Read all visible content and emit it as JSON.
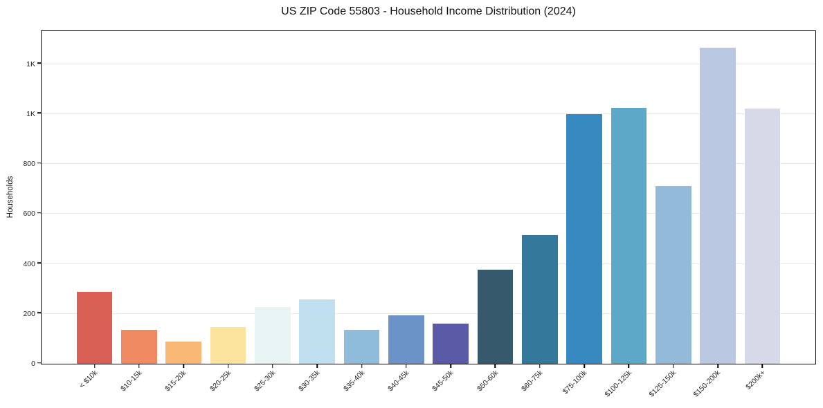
{
  "chart_data": {
    "type": "bar",
    "title": "US ZIP Code 55803 - Household Income Distribution (2024)",
    "xlabel": "",
    "ylabel": "Households",
    "categories": [
      "< $10k",
      "$10-15k",
      "$15-20k",
      "$20-25k",
      "$25-30k",
      "$30-35k",
      "$35-40k",
      "$40-45k",
      "$45-50k",
      "$50-60k",
      "$60-75k",
      "$75-100k",
      "$100-125k",
      "$125-150k",
      "$150-200k",
      "$200k+"
    ],
    "values": [
      287,
      135,
      88,
      146,
      228,
      258,
      135,
      193,
      160,
      378,
      516,
      999,
      1024,
      712,
      1266,
      1022
    ],
    "bar_colors": [
      "#d75f53",
      "#f08a63",
      "#fab876",
      "#fce49e",
      "#e8f3f4",
      "#c0dfee",
      "#8fbcdb",
      "#6b93c7",
      "#5b5aa7",
      "#36596b",
      "#34799b",
      "#3889c0",
      "#5da8c9",
      "#93bad9",
      "#bac9e1",
      "#d6d9e7"
    ],
    "yticks": [
      {
        "value": 0,
        "label": "0"
      },
      {
        "value": 200,
        "label": "200"
      },
      {
        "value": 400,
        "label": "400"
      },
      {
        "value": 600,
        "label": "600"
      },
      {
        "value": 800,
        "label": "800"
      },
      {
        "value": 1000,
        "label": "1K"
      },
      {
        "value": 1200,
        "label": "1K"
      }
    ],
    "gridline_values": [
      200,
      400,
      600,
      800,
      1000,
      1200
    ],
    "ylim": [
      0,
      1332
    ],
    "grid": "horizontal",
    "legend": "none",
    "grid_color": "#e9e9e9",
    "axis_color": "#000000",
    "background_color": "#ffffff"
  }
}
